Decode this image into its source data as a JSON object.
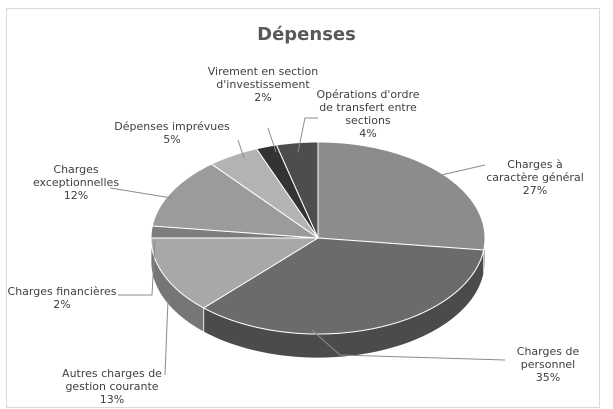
{
  "chart_data": {
    "type": "pie",
    "title": "Dépenses",
    "categories": [
      "Charges à caractère général",
      "Charges de personnel",
      "Autres charges de gestion courante",
      "Charges financières",
      "Charges exceptionnelles",
      "Dépenses imprévues",
      "Virement en section d'investissement",
      "Opérations d'ordre de transfert entre sections"
    ],
    "values": [
      27,
      35,
      13,
      2,
      12,
      5,
      2,
      4
    ],
    "value_labels": [
      "27%",
      "35%",
      "13%",
      "2%",
      "12%",
      "5%",
      "2%",
      "4%"
    ],
    "colors": [
      "#8c8c8c",
      "#6b6b6b",
      "#a8a8a8",
      "#7d7d7d",
      "#9b9b9b",
      "#b3b3b3",
      "#333333",
      "#4d4d4d"
    ]
  }
}
